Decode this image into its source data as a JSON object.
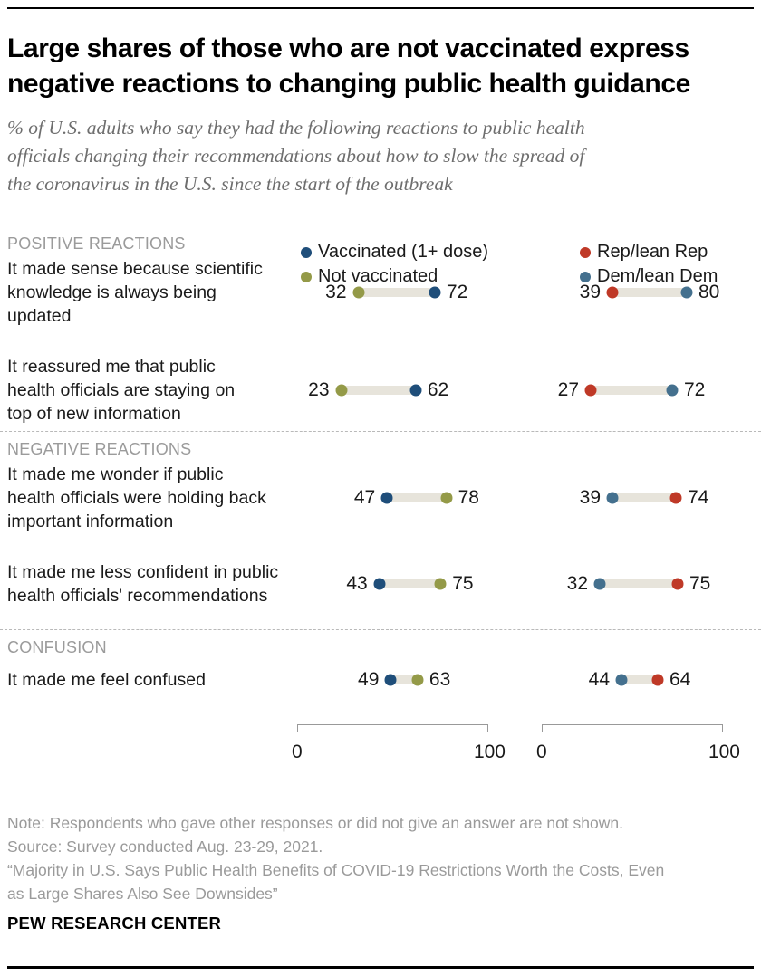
{
  "chart_data": {
    "type": "scatter",
    "variant": "dumbbell-dot-plot",
    "title": "Large shares of those who are not vaccinated express\nnegative reactions to changing public health guidance",
    "subtitle": "% of U.S. adults who say they had the following reactions to public health\nofficials changing their recommendations about how to slow the spread of\nthe coronavirus in the U.S. since the start of the outbreak",
    "axis": {
      "min": 0,
      "max": 100,
      "tick_labels": [
        "0",
        "100"
      ],
      "grid": false
    },
    "legend": {
      "col1": [
        {
          "label": "Vaccinated (1+ dose)",
          "color": "#1f4e7a"
        },
        {
          "label": "Not vaccinated",
          "color": "#949a48"
        }
      ],
      "col2": [
        {
          "label": "Rep/lean Rep",
          "color": "#bf3927"
        },
        {
          "label": "Dem/lean Dem",
          "color": "#44708e"
        }
      ]
    },
    "group_colors": {
      "Vaccinated (1+ dose)": "#1f4e7a",
      "Not vaccinated": "#949a48",
      "Rep/lean Rep": "#bf3927",
      "Dem/lean Dem": "#44708e"
    },
    "sections": [
      {
        "header": "POSITIVE REACTIONS",
        "rows": [
          {
            "label": "It made sense because scientific\nknowledge is always being\nupdated",
            "vaccination": [
              {
                "group": "Not vaccinated",
                "value": 32
              },
              {
                "group": "Vaccinated (1+ dose)",
                "value": 72
              }
            ],
            "party": [
              {
                "group": "Rep/lean Rep",
                "value": 39
              },
              {
                "group": "Dem/lean Dem",
                "value": 80
              }
            ]
          },
          {
            "label": "It reassured me that public\nhealth officials are staying on\ntop of new information",
            "vaccination": [
              {
                "group": "Not vaccinated",
                "value": 23
              },
              {
                "group": "Vaccinated (1+ dose)",
                "value": 62
              }
            ],
            "party": [
              {
                "group": "Rep/lean Rep",
                "value": 27
              },
              {
                "group": "Dem/lean Dem",
                "value": 72
              }
            ]
          }
        ]
      },
      {
        "header": "NEGATIVE REACTIONS",
        "rows": [
          {
            "label": "It made me wonder if public\nhealth officials were holding back\nimportant information",
            "vaccination": [
              {
                "group": "Vaccinated (1+ dose)",
                "value": 47
              },
              {
                "group": "Not vaccinated",
                "value": 78
              }
            ],
            "party": [
              {
                "group": "Dem/lean Dem",
                "value": 39
              },
              {
                "group": "Rep/lean Rep",
                "value": 74
              }
            ]
          },
          {
            "label": "It made me less confident in public\nhealth officials' recommendations",
            "vaccination": [
              {
                "group": "Vaccinated (1+ dose)",
                "value": 43
              },
              {
                "group": "Not vaccinated",
                "value": 75
              }
            ],
            "party": [
              {
                "group": "Dem/lean Dem",
                "value": 32
              },
              {
                "group": "Rep/lean Rep",
                "value": 75
              }
            ]
          }
        ]
      },
      {
        "header": "CONFUSION",
        "rows": [
          {
            "label": "It made me feel confused",
            "vaccination": [
              {
                "group": "Vaccinated (1+ dose)",
                "value": 49
              },
              {
                "group": "Not vaccinated",
                "value": 63
              }
            ],
            "party": [
              {
                "group": "Dem/lean Dem",
                "value": 44
              },
              {
                "group": "Rep/lean Rep",
                "value": 64
              }
            ]
          }
        ]
      }
    ]
  },
  "footer": {
    "note": "Note: Respondents who gave other responses or did not give an answer are not shown.",
    "source": "Source: Survey conducted Aug. 23-29, 2021.",
    "report": "“Majority in U.S. Says Public Health Benefits of COVID-19 Restrictions Worth the Costs, Even\nas Large Shares Also See Downsides”",
    "brand": "PEW RESEARCH CENTER"
  }
}
